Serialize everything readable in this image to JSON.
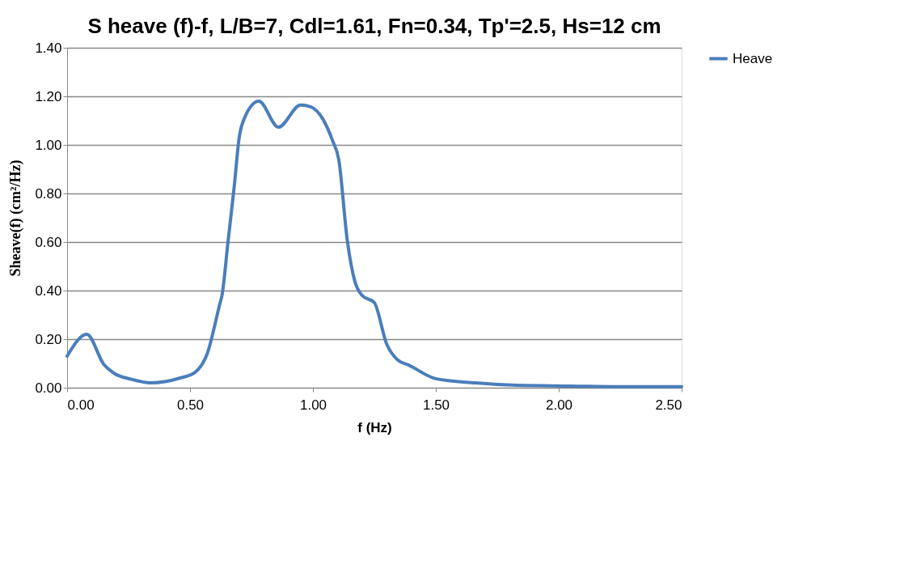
{
  "chart_data": {
    "type": "line",
    "title": "S heave (f)-f, L/B=7, Cdl=1.61, Fn=0.34, Tp'=2.5, Hs=12 cm",
    "xlabel": "f (Hz)",
    "ylabel": "Sheave(f)  (cm²/Hz)",
    "xlim": [
      0,
      2.5
    ],
    "xticks": [
      {
        "value": 0,
        "label": "0.00"
      },
      {
        "value": 0.5,
        "label": "0.50"
      },
      {
        "value": 1,
        "label": "1.00"
      },
      {
        "value": 1.5,
        "label": "1.50"
      },
      {
        "value": 2,
        "label": "2.00"
      },
      {
        "value": 2.5,
        "label": "2.50"
      }
    ],
    "ylim": [
      0,
      1.4
    ],
    "yticks": [
      {
        "value": 0,
        "label": "0.00"
      },
      {
        "value": 0.2,
        "label": "0.20"
      },
      {
        "value": 0.4,
        "label": "0.40"
      },
      {
        "value": 0.6,
        "label": "0.60"
      },
      {
        "value": 0.8,
        "label": "0.80"
      },
      {
        "value": 1,
        "label": "1.00"
      },
      {
        "value": 1.2,
        "label": "1.20"
      },
      {
        "value": 1.4,
        "label": "1.40"
      }
    ],
    "grid": "y",
    "legend": "right",
    "line_style": "solid",
    "marker": "none",
    "series": [
      {
        "name": "Heave",
        "color": "#4a7ebb",
        "x": [
          0,
          0.08,
          0.15,
          0.19,
          0.26,
          0.34,
          0.46,
          0.52,
          0.57,
          0.62,
          0.63,
          0.655,
          0.68,
          0.7,
          0.72,
          0.78,
          0.86,
          0.95,
          0.99,
          1.04,
          1.08,
          1.105,
          1.14,
          1.17,
          1.2,
          1.25,
          1.3,
          1.345,
          1.39,
          1.5,
          1.66,
          1.83,
          2.05,
          2.27,
          2.5
        ],
        "values": [
          0.13,
          0.22,
          0.095,
          0.06,
          0.035,
          0.02,
          0.04,
          0.063,
          0.14,
          0.34,
          0.38,
          0.605,
          0.83,
          1.03,
          1.107,
          1.18,
          1.073,
          1.164,
          1.157,
          1.107,
          1.017,
          0.94,
          0.605,
          0.44,
          0.38,
          0.35,
          0.18,
          0.114,
          0.093,
          0.037,
          0.02,
          0.01,
          0.007,
          0.004,
          0.004
        ]
      }
    ]
  }
}
